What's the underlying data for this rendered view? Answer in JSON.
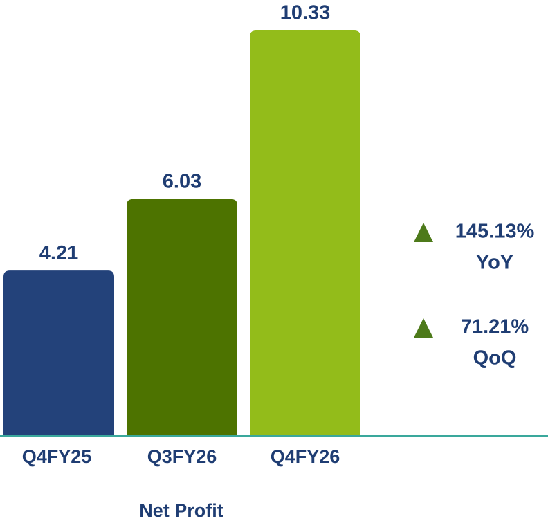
{
  "chart_data": {
    "type": "bar",
    "title": "Net Profit",
    "categories": [
      "Q4FY25",
      "Q3FY26",
      "Q4FY26"
    ],
    "values": [
      4.21,
      6.03,
      10.33
    ],
    "colors": [
      "#23427a",
      "#4d7300",
      "#93bc1a"
    ],
    "annotations": [
      {
        "text": "145.13%",
        "label": "YoY"
      },
      {
        "text": "71.21%",
        "label": "QoQ"
      }
    ]
  }
}
